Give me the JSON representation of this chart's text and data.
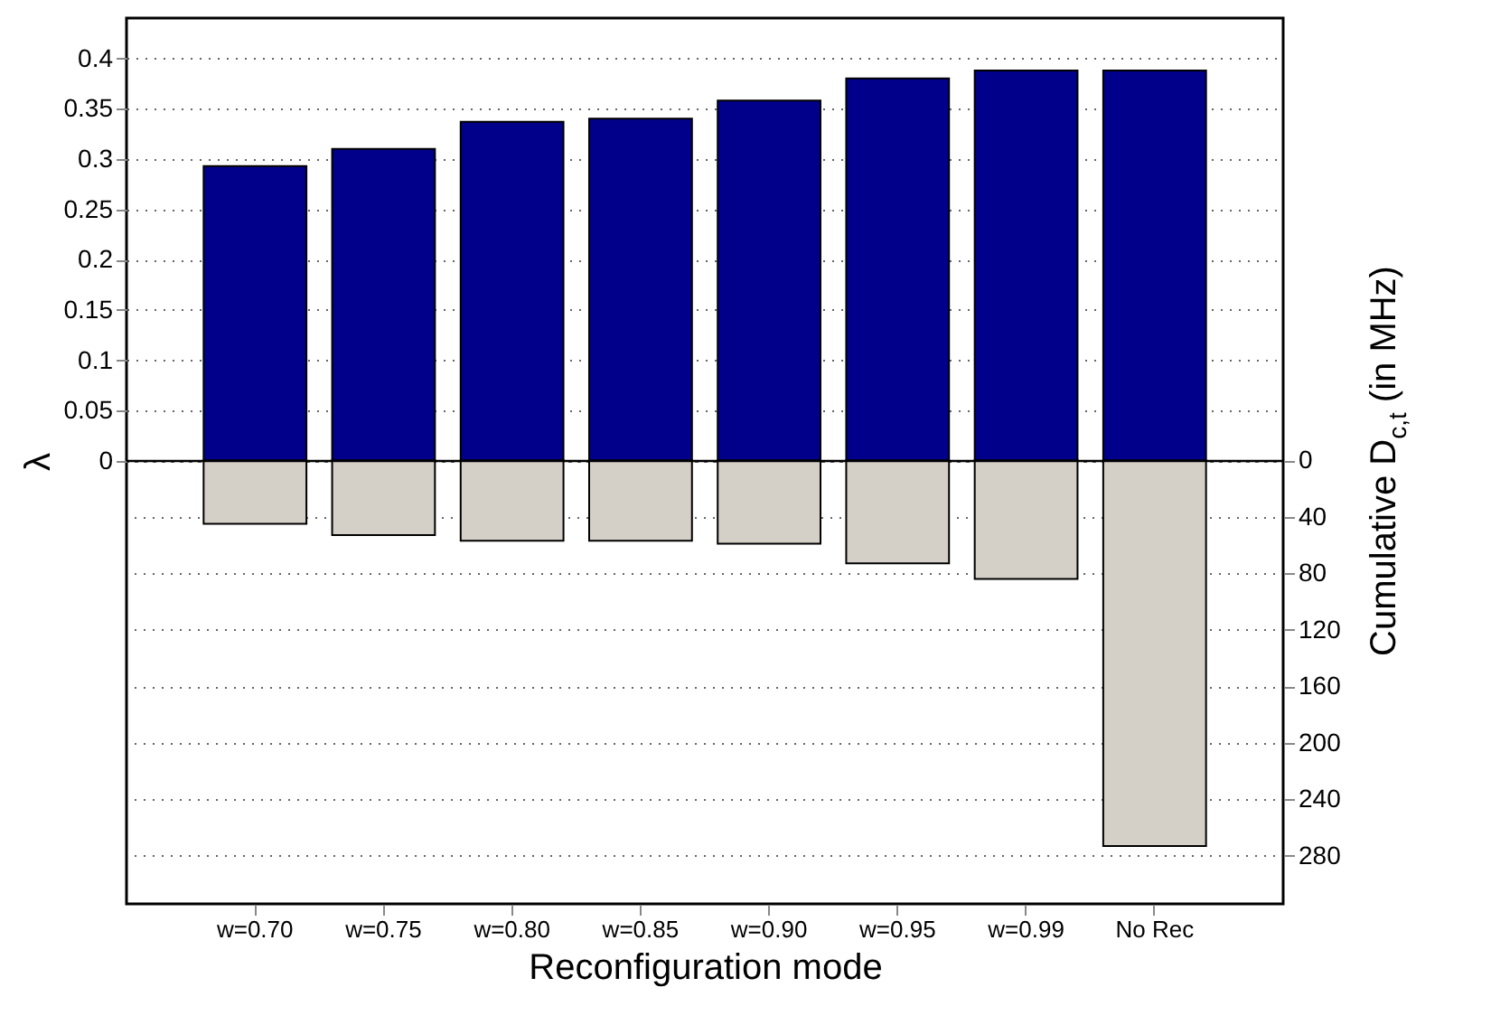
{
  "chart_data": {
    "type": "bar",
    "xlabel": "Reconfiguration mode",
    "ylabel": "λ",
    "y2label": "Cumulative D$_{c,t}$ (in MHz)",
    "categories": [
      "w=0.70",
      "w=0.75",
      "w=0.80",
      "w=0.85",
      "w=0.90",
      "w=0.95",
      "w=0.99",
      "No Rec"
    ],
    "series": [
      {
        "color": "#00008b",
        "values": [
          0.293,
          0.31,
          0.337,
          0.34,
          0.358,
          0.38,
          0.388,
          0.388
        ]
      },
      {
        "color": "#d4d0c8",
        "axis": "y2",
        "values": [
          45,
          53,
          57,
          57,
          59,
          73,
          84,
          273
        ]
      }
    ],
    "ylim": [
      -0.44,
      0.44
    ],
    "yticks": [
      0,
      0.05,
      0.1,
      0.15,
      0.2,
      0.25,
      0.3,
      0.35,
      0.4
    ],
    "y2lim": [
      314,
      -313
    ],
    "y2ticks": [
      0,
      40,
      80,
      120,
      160,
      200,
      240,
      280
    ],
    "ref_lines": [
      {
        "axis": "y",
        "value": 0,
        "color": "#000000"
      }
    ],
    "stacked": true,
    "grid": true
  }
}
